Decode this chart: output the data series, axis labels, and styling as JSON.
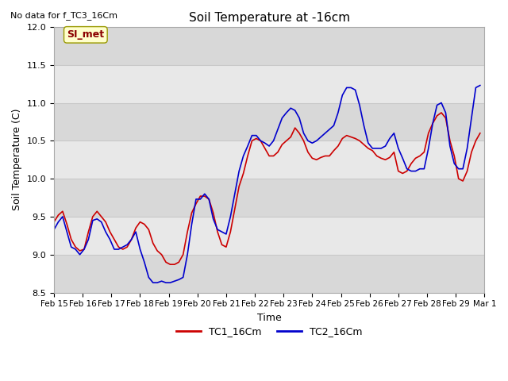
{
  "title": "Soil Temperature at -16cm",
  "subtitle": "No data for f_TC3_16Cm",
  "xlabel": "Time",
  "ylabel": "Soil Temperature (C)",
  "ylim": [
    8.5,
    12.0
  ],
  "fig_bg_color": "#ffffff",
  "plot_bg_color": "#e8e8e8",
  "grid_color": "#d4d4d4",
  "legend_label1": "TC1_16Cm",
  "legend_label2": "TC2_16Cm",
  "legend_color1": "#cc0000",
  "legend_color2": "#0000cc",
  "annotation_text": "SI_met",
  "annotation_color": "#8b0000",
  "annotation_bg": "#ffffcc",
  "xtick_labels": [
    "Feb 15",
    "Feb 16",
    "Feb 17",
    "Feb 18",
    "Feb 19",
    "Feb 20",
    "Feb 21",
    "Feb 22",
    "Feb 23",
    "Feb 24",
    "Feb 25",
    "Feb 26",
    "Feb 27",
    "Feb 28",
    "Feb 29",
    "Mar 1"
  ],
  "tc1_x": [
    0.0,
    0.15,
    0.3,
    0.45,
    0.6,
    0.75,
    0.9,
    1.05,
    1.2,
    1.35,
    1.5,
    1.65,
    1.8,
    1.95,
    2.1,
    2.25,
    2.4,
    2.55,
    2.7,
    2.85,
    3.0,
    3.15,
    3.3,
    3.45,
    3.6,
    3.75,
    3.9,
    4.05,
    4.2,
    4.35,
    4.5,
    4.65,
    4.8,
    4.95,
    5.1,
    5.25,
    5.4,
    5.55,
    5.7,
    5.85,
    6.0,
    6.15,
    6.3,
    6.45,
    6.6,
    6.75,
    6.9,
    7.05,
    7.2,
    7.35,
    7.5,
    7.65,
    7.8,
    7.95,
    8.1,
    8.25,
    8.4,
    8.55,
    8.7,
    8.85,
    9.0,
    9.15,
    9.3,
    9.45,
    9.6,
    9.75,
    9.9,
    10.05,
    10.2,
    10.35,
    10.5,
    10.65,
    10.8,
    10.95,
    11.1,
    11.25,
    11.4,
    11.55,
    11.7,
    11.85,
    12.0,
    12.15,
    12.3,
    12.45,
    12.6,
    12.75,
    12.9,
    13.05,
    13.2,
    13.35,
    13.5,
    13.65,
    13.8,
    13.95,
    14.1,
    14.25,
    14.4,
    14.55,
    14.7,
    14.85
  ],
  "tc1_y": [
    9.43,
    9.52,
    9.57,
    9.4,
    9.2,
    9.1,
    9.05,
    9.07,
    9.3,
    9.5,
    9.57,
    9.5,
    9.43,
    9.3,
    9.2,
    9.1,
    9.07,
    9.1,
    9.2,
    9.35,
    9.43,
    9.4,
    9.33,
    9.15,
    9.05,
    9.0,
    8.9,
    8.87,
    8.87,
    8.9,
    9.0,
    9.3,
    9.55,
    9.67,
    9.77,
    9.77,
    9.73,
    9.55,
    9.3,
    9.13,
    9.1,
    9.3,
    9.6,
    9.9,
    10.07,
    10.3,
    10.5,
    10.53,
    10.5,
    10.4,
    10.3,
    10.3,
    10.35,
    10.45,
    10.5,
    10.55,
    10.67,
    10.6,
    10.5,
    10.35,
    10.27,
    10.25,
    10.28,
    10.3,
    10.3,
    10.37,
    10.43,
    10.53,
    10.57,
    10.55,
    10.53,
    10.5,
    10.45,
    10.4,
    10.37,
    10.3,
    10.27,
    10.25,
    10.28,
    10.35,
    10.1,
    10.07,
    10.1,
    10.2,
    10.27,
    10.3,
    10.35,
    10.6,
    10.73,
    10.83,
    10.87,
    10.8,
    10.5,
    10.3,
    10.0,
    9.97,
    10.1,
    10.35,
    10.5,
    10.6
  ],
  "tc2_x": [
    0.0,
    0.15,
    0.3,
    0.45,
    0.6,
    0.75,
    0.9,
    1.05,
    1.2,
    1.35,
    1.5,
    1.65,
    1.8,
    1.95,
    2.1,
    2.25,
    2.4,
    2.55,
    2.7,
    2.85,
    3.0,
    3.15,
    3.3,
    3.45,
    3.6,
    3.75,
    3.9,
    4.05,
    4.2,
    4.35,
    4.5,
    4.65,
    4.8,
    4.95,
    5.1,
    5.25,
    5.4,
    5.55,
    5.7,
    5.85,
    6.0,
    6.15,
    6.3,
    6.45,
    6.6,
    6.75,
    6.9,
    7.05,
    7.2,
    7.35,
    7.5,
    7.65,
    7.8,
    7.95,
    8.1,
    8.25,
    8.4,
    8.55,
    8.7,
    8.85,
    9.0,
    9.15,
    9.3,
    9.45,
    9.6,
    9.75,
    9.9,
    10.05,
    10.2,
    10.35,
    10.5,
    10.65,
    10.8,
    10.95,
    11.1,
    11.25,
    11.4,
    11.55,
    11.7,
    11.85,
    12.0,
    12.15,
    12.3,
    12.45,
    12.6,
    12.75,
    12.9,
    13.05,
    13.2,
    13.35,
    13.5,
    13.65,
    13.8,
    13.95,
    14.1,
    14.25,
    14.4,
    14.55,
    14.7,
    14.85
  ],
  "tc2_y": [
    9.33,
    9.43,
    9.5,
    9.3,
    9.1,
    9.07,
    9.0,
    9.07,
    9.2,
    9.45,
    9.47,
    9.43,
    9.3,
    9.2,
    9.07,
    9.07,
    9.1,
    9.13,
    9.2,
    9.3,
    9.07,
    8.9,
    8.7,
    8.63,
    8.63,
    8.65,
    8.63,
    8.63,
    8.65,
    8.67,
    8.7,
    9.0,
    9.4,
    9.73,
    9.73,
    9.8,
    9.73,
    9.47,
    9.33,
    9.3,
    9.27,
    9.5,
    9.8,
    10.1,
    10.3,
    10.43,
    10.57,
    10.57,
    10.5,
    10.47,
    10.43,
    10.5,
    10.65,
    10.8,
    10.87,
    10.93,
    10.9,
    10.8,
    10.6,
    10.5,
    10.47,
    10.5,
    10.55,
    10.6,
    10.65,
    10.7,
    10.87,
    11.1,
    11.2,
    11.2,
    11.17,
    10.97,
    10.7,
    10.47,
    10.4,
    10.4,
    10.4,
    10.43,
    10.53,
    10.6,
    10.4,
    10.27,
    10.13,
    10.1,
    10.1,
    10.13,
    10.13,
    10.4,
    10.73,
    10.97,
    11.0,
    10.87,
    10.43,
    10.2,
    10.13,
    10.13,
    10.4,
    10.8,
    11.2,
    11.23
  ]
}
